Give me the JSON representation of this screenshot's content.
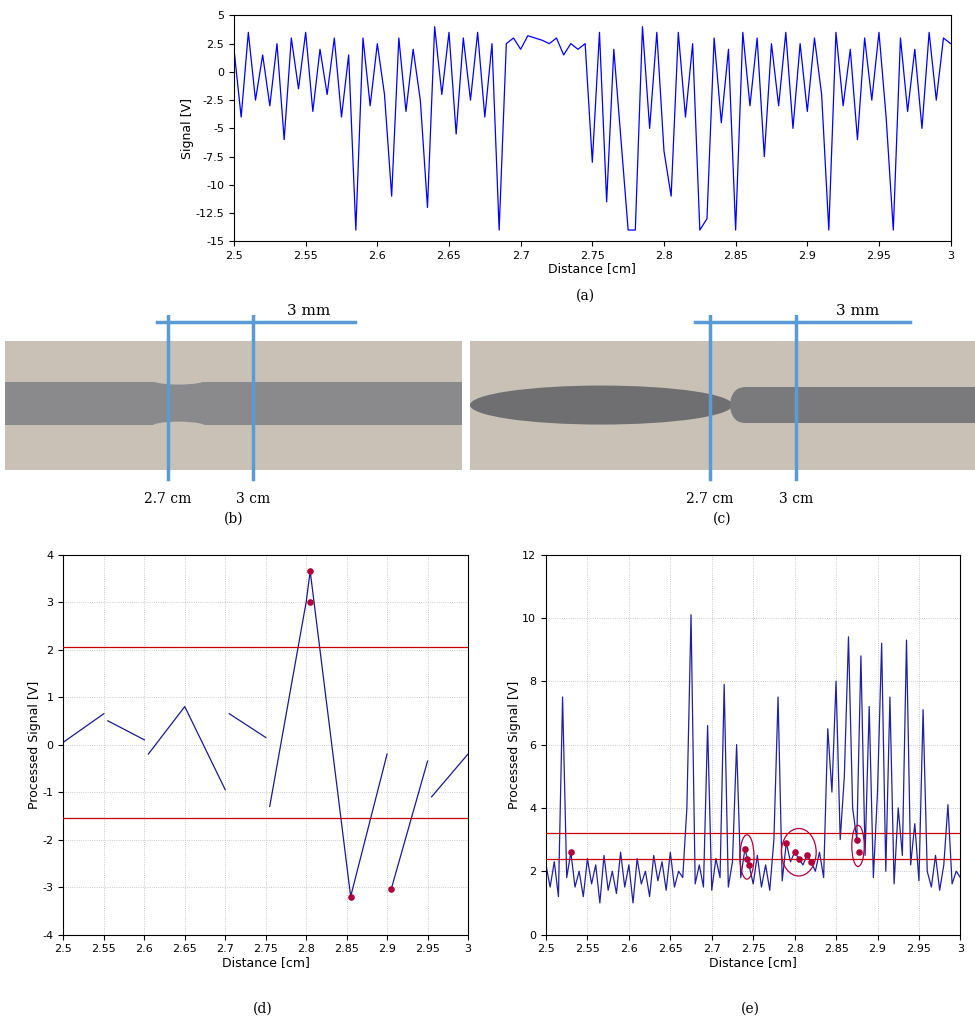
{
  "chart_data": [
    {
      "type": "line",
      "caption": "(a)",
      "x_label": "Distance [cm]",
      "y_label": "Signal [V]",
      "xlim": [
        2.5,
        3
      ],
      "xticks": [
        2.5,
        2.55,
        2.6,
        2.65,
        2.7,
        2.75,
        2.8,
        2.85,
        2.9,
        2.95,
        3
      ],
      "ylim": [
        -15,
        5
      ],
      "yticks": [
        -15,
        -12.5,
        -10,
        -7.5,
        -5,
        -2.5,
        0,
        2.5,
        5
      ],
      "grid": false,
      "series": [
        {
          "type": "line",
          "color": "#0000ff",
          "x": [
            2.5,
            2.505,
            2.51,
            2.515,
            2.52,
            2.525,
            2.53,
            2.535,
            2.54,
            2.545,
            2.55,
            2.555,
            2.56,
            2.565,
            2.57,
            2.575,
            2.58,
            2.585,
            2.59,
            2.595,
            2.6,
            2.605,
            2.61,
            2.615,
            2.62,
            2.625,
            2.63,
            2.635,
            2.64,
            2.645,
            2.65,
            2.655,
            2.66,
            2.665,
            2.67,
            2.675,
            2.68,
            2.685,
            2.69,
            2.695,
            2.7,
            2.705,
            2.71,
            2.715,
            2.72,
            2.725,
            2.73,
            2.735,
            2.74,
            2.745,
            2.75,
            2.755,
            2.76,
            2.765,
            2.77,
            2.775,
            2.78,
            2.785,
            2.79,
            2.795,
            2.8,
            2.805,
            2.81,
            2.815,
            2.82,
            2.825,
            2.83,
            2.835,
            2.84,
            2.845,
            2.85,
            2.855,
            2.86,
            2.865,
            2.87,
            2.875,
            2.88,
            2.885,
            2.89,
            2.895,
            2.9,
            2.905,
            2.91,
            2.915,
            2.92,
            2.925,
            2.93,
            2.935,
            2.94,
            2.945,
            2.95,
            2.955,
            2.96,
            2.965,
            2.97,
            2.975,
            2.98,
            2.985,
            2.99,
            2.995,
            3.0
          ],
          "values": [
            2.0,
            -4.0,
            3.5,
            -2.5,
            1.5,
            -3.0,
            2.5,
            -6.0,
            3.0,
            -1.5,
            3.5,
            -3.5,
            2.0,
            -2.0,
            3.0,
            -4.0,
            1.5,
            -14.0,
            3.0,
            -3.0,
            2.5,
            -2.0,
            -11.0,
            3.0,
            -3.5,
            2.0,
            -2.5,
            -12.0,
            4.0,
            -2.0,
            3.5,
            -5.5,
            3.0,
            -2.5,
            3.5,
            -4.0,
            2.5,
            -14.0,
            2.5,
            3.0,
            2.0,
            3.2,
            3.0,
            2.8,
            2.5,
            3.0,
            1.5,
            2.5,
            2.0,
            2.5,
            -8.0,
            3.5,
            -11.5,
            2.0,
            -6.0,
            -14.0,
            -14.0,
            4.0,
            -5.0,
            3.5,
            -7.0,
            -11.0,
            3.5,
            -4.0,
            2.5,
            -14.0,
            -13.0,
            3.0,
            -4.5,
            2.0,
            -14.0,
            3.5,
            -3.0,
            3.0,
            -7.5,
            2.5,
            -3.0,
            3.5,
            -5.0,
            2.5,
            -3.5,
            3.0,
            -2.0,
            -14.0,
            3.5,
            -3.0,
            2.0,
            -6.0,
            3.0,
            -2.5,
            3.5,
            -4.0,
            -14.0,
            3.0,
            -3.5,
            2.0,
            -5.0,
            3.5,
            -2.5,
            3.0,
            2.5
          ]
        }
      ]
    },
    {
      "type": "line",
      "caption": "(d)",
      "x_label": "Distance [cm]",
      "y_label": "Processed Signal [V]",
      "xlim": [
        2.5,
        3
      ],
      "xticks": [
        2.5,
        2.55,
        2.6,
        2.65,
        2.7,
        2.75,
        2.8,
        2.85,
        2.9,
        2.95,
        3
      ],
      "ylim": [
        -4,
        4
      ],
      "yticks": [
        -4,
        -3,
        -2,
        -1,
        0,
        1,
        2,
        3,
        4
      ],
      "grid": true,
      "reference_lines": {
        "values": [
          2.05,
          -1.55
        ],
        "color": "#cc0000"
      },
      "series": [
        {
          "type": "line",
          "color": "#1a1a8c",
          "x": [
            2.5,
            2.55,
            2.552,
            2.555,
            2.6,
            2.602,
            2.605,
            2.65,
            2.7,
            2.702,
            2.705,
            2.75,
            2.752,
            2.755,
            2.8,
            2.805,
            2.855,
            2.9,
            2.902,
            2.905,
            2.95,
            2.952,
            2.955,
            3
          ],
          "values": [
            0.05,
            0.65,
            null,
            0.5,
            0.1,
            null,
            -0.2,
            0.8,
            -0.95,
            null,
            0.65,
            0.15,
            null,
            -1.3,
            3.0,
            3.65,
            -3.2,
            -0.2,
            null,
            -3.05,
            -0.35,
            null,
            -1.1,
            -0.2
          ]
        },
        {
          "type": "scatter",
          "color": "#b0003a",
          "marker": "o",
          "x": [
            2.805,
            2.805,
            2.855,
            2.905
          ],
          "values": [
            3.65,
            3.0,
            -3.2,
            -3.05
          ]
        }
      ]
    },
    {
      "type": "line",
      "caption": "(e)",
      "x_label": "Distance [cm]",
      "y_label": "Processed Signal [V]",
      "xlim": [
        2.5,
        3
      ],
      "xticks": [
        2.5,
        2.55,
        2.6,
        2.65,
        2.7,
        2.75,
        2.8,
        2.85,
        2.9,
        2.95,
        3
      ],
      "ylim": [
        0,
        12
      ],
      "yticks": [
        0,
        2,
        4,
        6,
        8,
        10,
        12
      ],
      "grid": true,
      "reference_lines": {
        "values": [
          3.2,
          2.4
        ],
        "color": "#cc0000"
      },
      "series": [
        {
          "type": "line",
          "color": "#2020a0",
          "x": [
            2.5,
            2.505,
            2.51,
            2.515,
            2.52,
            2.525,
            2.53,
            2.535,
            2.54,
            2.545,
            2.55,
            2.555,
            2.56,
            2.565,
            2.57,
            2.575,
            2.58,
            2.585,
            2.59,
            2.595,
            2.6,
            2.605,
            2.61,
            2.615,
            2.62,
            2.625,
            2.63,
            2.635,
            2.64,
            2.645,
            2.65,
            2.655,
            2.66,
            2.665,
            2.67,
            2.675,
            2.68,
            2.685,
            2.69,
            2.695,
            2.7,
            2.705,
            2.71,
            2.715,
            2.72,
            2.725,
            2.73,
            2.735,
            2.74,
            2.745,
            2.75,
            2.755,
            2.76,
            2.765,
            2.77,
            2.775,
            2.78,
            2.785,
            2.79,
            2.795,
            2.8,
            2.805,
            2.81,
            2.815,
            2.82,
            2.825,
            2.83,
            2.835,
            2.84,
            2.845,
            2.85,
            2.855,
            2.86,
            2.865,
            2.87,
            2.875,
            2.88,
            2.885,
            2.89,
            2.895,
            2.9,
            2.905,
            2.91,
            2.915,
            2.92,
            2.925,
            2.93,
            2.935,
            2.94,
            2.945,
            2.95,
            2.955,
            2.96,
            2.965,
            2.97,
            2.975,
            2.98,
            2.985,
            2.99,
            2.995,
            3.0
          ],
          "values": [
            2.2,
            1.5,
            2.3,
            1.2,
            7.5,
            1.8,
            2.6,
            1.5,
            2.0,
            1.2,
            2.4,
            1.6,
            2.2,
            1.0,
            2.5,
            1.4,
            2.0,
            1.3,
            2.6,
            1.5,
            2.2,
            1.0,
            2.4,
            1.6,
            2.0,
            1.2,
            2.5,
            1.7,
            2.3,
            1.4,
            2.6,
            1.5,
            2.0,
            1.8,
            4.0,
            10.1,
            1.6,
            2.2,
            1.5,
            6.6,
            1.4,
            2.4,
            1.8,
            7.9,
            1.5,
            2.3,
            6.0,
            1.8,
            2.7,
            2.2,
            1.6,
            2.5,
            1.5,
            2.2,
            1.4,
            3.0,
            7.5,
            1.7,
            2.9,
            2.3,
            2.6,
            2.4,
            2.2,
            2.5,
            2.3,
            2.0,
            2.6,
            1.8,
            6.5,
            4.5,
            8.0,
            3.0,
            5.0,
            9.4,
            4.0,
            3.0,
            8.8,
            2.5,
            7.2,
            1.8,
            4.5,
            9.2,
            2.0,
            7.5,
            1.6,
            4.0,
            2.5,
            9.3,
            2.2,
            3.5,
            1.7,
            7.1,
            2.0,
            1.5,
            2.5,
            1.4,
            2.2,
            4.1,
            1.6,
            2.0,
            1.8
          ]
        },
        {
          "type": "scatter",
          "color": "#b0003a",
          "marker": "o",
          "x": [
            2.53,
            2.74,
            2.742,
            2.745,
            2.79,
            2.8,
            2.805,
            2.815,
            2.82,
            2.875,
            2.878
          ],
          "values": [
            2.6,
            2.7,
            2.4,
            2.2,
            2.9,
            2.6,
            2.4,
            2.5,
            2.3,
            3.0,
            2.6
          ]
        }
      ]
    }
  ],
  "photos": [
    {
      "caption": "(b)",
      "scale_label": "3 mm",
      "marker_labels": [
        "2.7 cm",
        "3 cm"
      ]
    },
    {
      "caption": "(c)",
      "scale_label": "3 mm",
      "marker_labels": [
        "2.7 cm",
        "3 cm"
      ]
    }
  ]
}
